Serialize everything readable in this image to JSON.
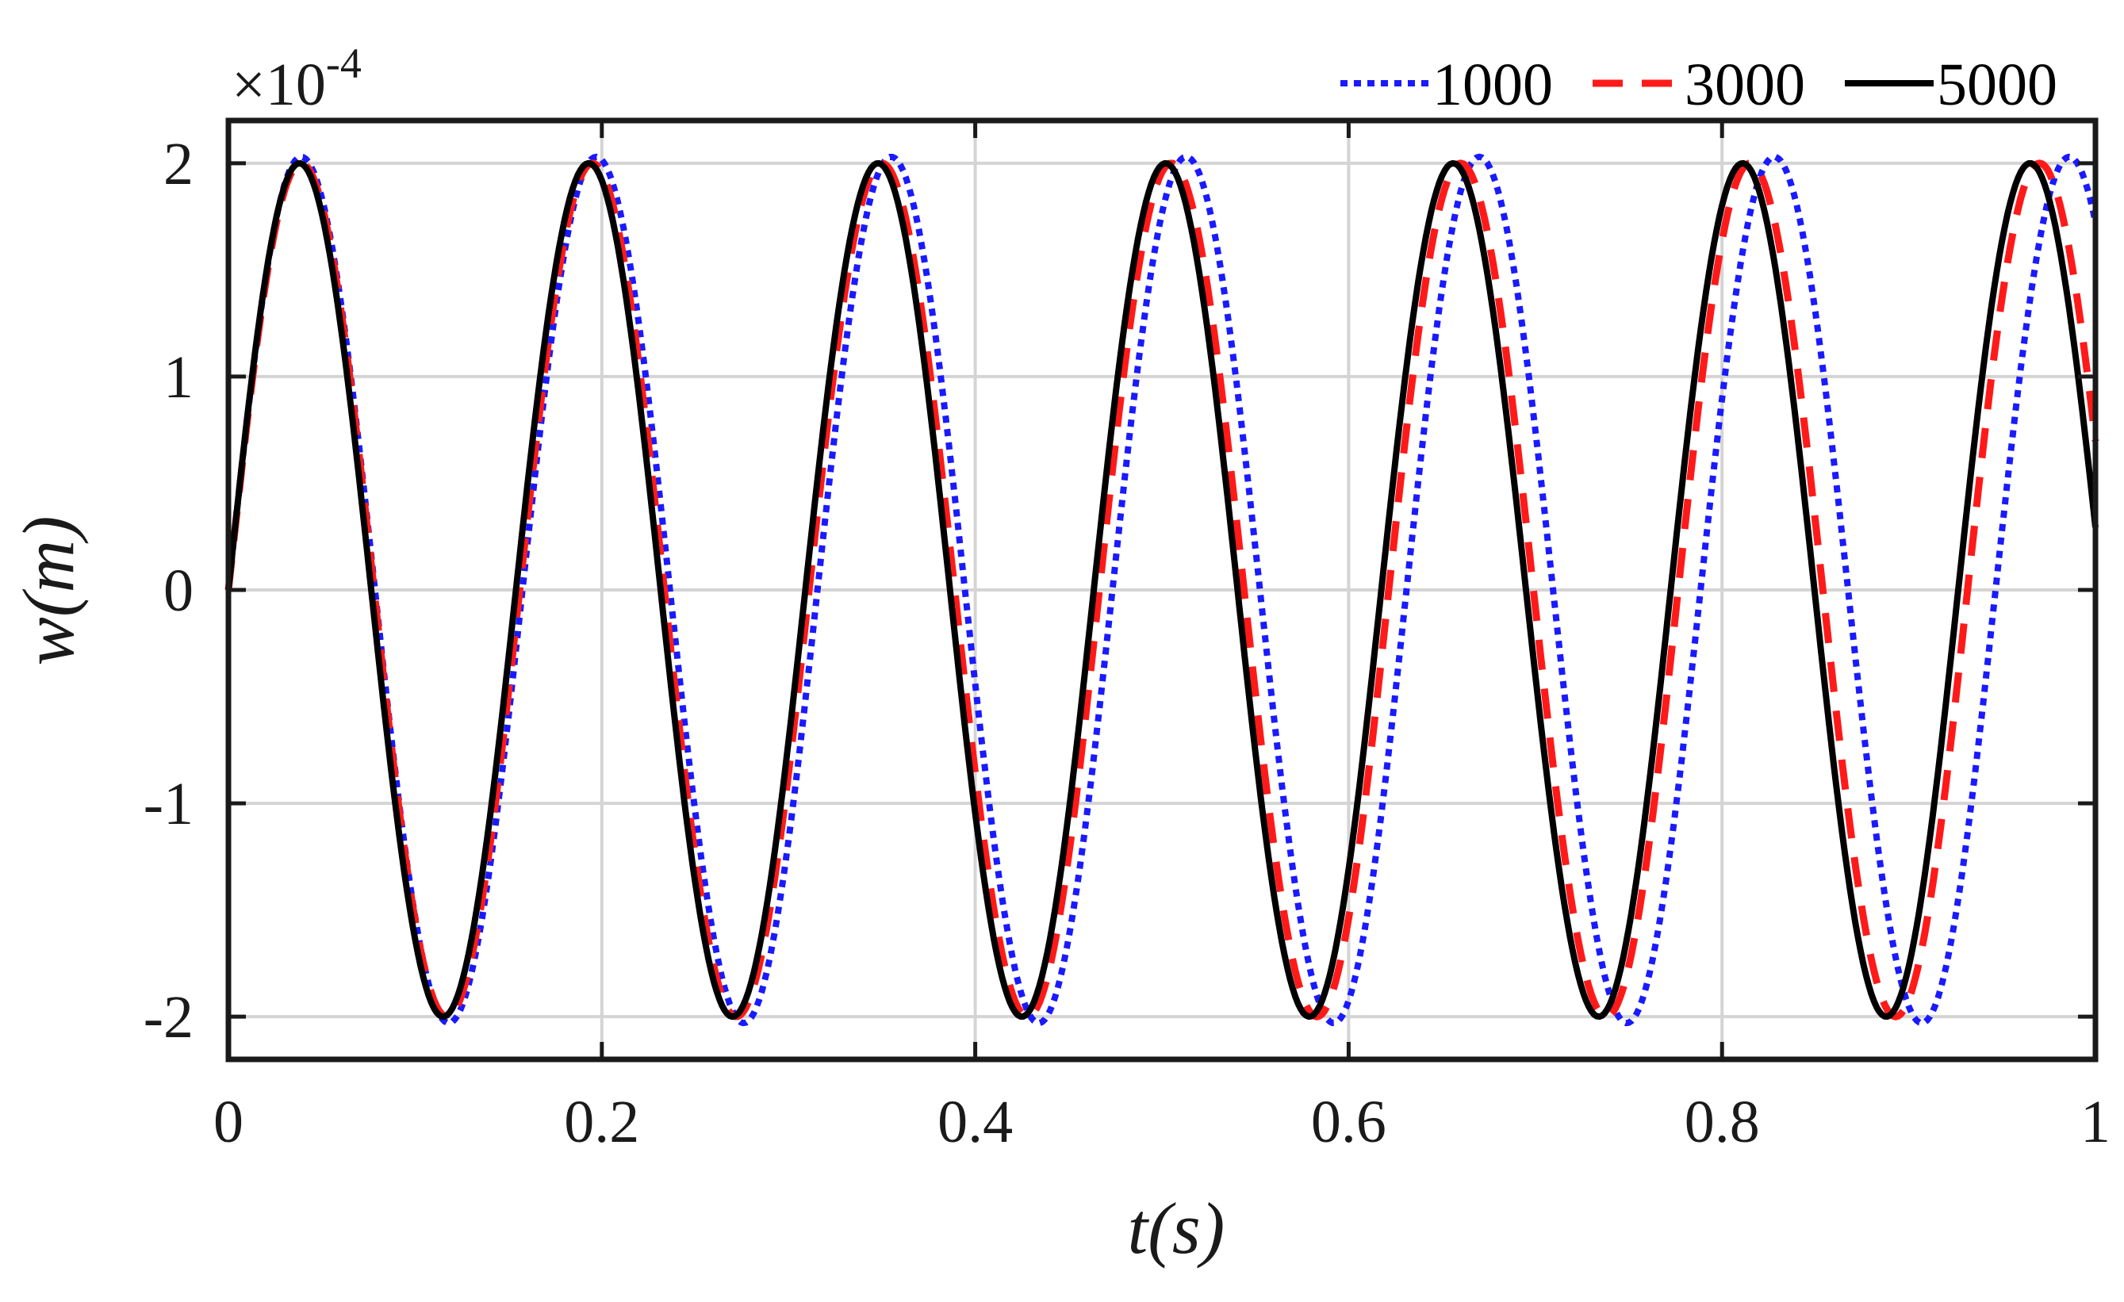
{
  "chart_data": {
    "type": "line",
    "title": "",
    "xlabel": "t(s)",
    "ylabel": "w(m)",
    "y_multiplier": {
      "base": "×10",
      "exponent": "-4"
    },
    "xlim": [
      0,
      1
    ],
    "ylim": [
      -2.2,
      2.2
    ],
    "x_ticks": [
      0,
      0.2,
      0.4,
      0.6,
      0.8,
      1
    ],
    "x_tick_labels": [
      "0",
      "0.2",
      "0.4",
      "0.6",
      "0.8",
      "1"
    ],
    "y_ticks": [
      2,
      1,
      0,
      -1,
      -2
    ],
    "y_tick_labels": [
      "2",
      "1",
      "0",
      "-1",
      "-2"
    ],
    "grid": true,
    "legend_position": "top-right, above axes",
    "series": [
      {
        "name": "1000",
        "color": "#1a1aff",
        "style": "dotted",
        "amplitude": 2.03,
        "peak_times": [
          0.039,
          0.197,
          0.355,
          0.513,
          0.67,
          0.828,
          0.986
        ],
        "trough_times": [
          0.118,
          0.276,
          0.434,
          0.592,
          0.749,
          0.907
        ]
      },
      {
        "name": "3000",
        "color": "#ff1a1a",
        "style": "dashed",
        "amplitude": 2.0,
        "peak_times": [
          0.039,
          0.195,
          0.35,
          0.505,
          0.66,
          0.815,
          0.97
        ],
        "trough_times": [
          0.117,
          0.272,
          0.428,
          0.583,
          0.738,
          0.893
        ]
      },
      {
        "name": "5000",
        "color": "#000000",
        "style": "solid",
        "amplitude": 2.0,
        "peak_times": [
          0.038,
          0.193,
          0.348,
          0.502,
          0.656,
          0.811,
          0.965
        ],
        "trough_times": [
          0.115,
          0.27,
          0.425,
          0.579,
          0.734,
          0.888
        ]
      }
    ]
  }
}
